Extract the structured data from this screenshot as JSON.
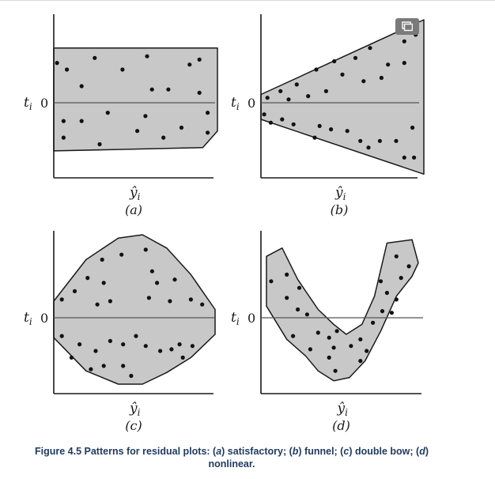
{
  "chart_data": [
    {
      "type": "scatter",
      "panel_label": "(a)",
      "pattern": "satisfactory",
      "ylabel": "t",
      "ylabel_subscript": "i",
      "y_zero_label": "0",
      "xlabel": "ŷ",
      "xlabel_subscript": "i",
      "xlim": [
        0,
        10
      ],
      "ylim": [
        -5,
        5
      ],
      "band": {
        "upper": [
          [
            0,
            3.3
          ],
          [
            10,
            3.3
          ]
        ],
        "lower": [
          [
            0,
            -2.9
          ],
          [
            9.1,
            -2.7
          ],
          [
            10,
            -1.7
          ]
        ]
      },
      "points": [
        [
          0.2,
          2.4
        ],
        [
          0.8,
          2.0
        ],
        [
          1.7,
          1.0
        ],
        [
          2.5,
          2.7
        ],
        [
          4.2,
          2.0
        ],
        [
          5.7,
          2.8
        ],
        [
          6.0,
          0.8
        ],
        [
          8.3,
          2.3
        ],
        [
          8.9,
          2.6
        ],
        [
          8.9,
          0.6
        ],
        [
          7.0,
          0.8
        ],
        [
          0.6,
          -1.1
        ],
        [
          1.7,
          -1.1
        ],
        [
          3.3,
          -0.6
        ],
        [
          5.1,
          -1.7
        ],
        [
          2.8,
          -2.5
        ],
        [
          0.6,
          -2.1
        ],
        [
          5.6,
          -0.8
        ],
        [
          6.7,
          -2.1
        ],
        [
          7.8,
          -1.5
        ],
        [
          9.4,
          -1.8
        ],
        [
          9.4,
          -0.6
        ]
      ]
    },
    {
      "type": "scatter",
      "panel_label": "(b)",
      "pattern": "funnel",
      "ylabel": "t",
      "ylabel_subscript": "i",
      "y_zero_label": "0",
      "xlabel": "ŷ",
      "xlabel_subscript": "i",
      "xlim": [
        0,
        10
      ],
      "ylim": [
        -5,
        5
      ],
      "band": {
        "upper": [
          [
            0,
            0.5
          ],
          [
            10,
            5.0
          ]
        ],
        "lower": [
          [
            0,
            -1.0
          ],
          [
            10,
            -4.3
          ]
        ]
      },
      "points": [
        [
          0.4,
          0.3
        ],
        [
          1.2,
          0.7
        ],
        [
          2.2,
          1.1
        ],
        [
          3.4,
          2.0
        ],
        [
          4.5,
          2.5
        ],
        [
          5.0,
          1.7
        ],
        [
          5.8,
          2.7
        ],
        [
          6.7,
          3.3
        ],
        [
          6.3,
          1.3
        ],
        [
          7.4,
          1.5
        ],
        [
          7.8,
          2.3
        ],
        [
          8.8,
          3.7
        ],
        [
          9.5,
          4.1
        ],
        [
          8.8,
          2.4
        ],
        [
          1.7,
          0.2
        ],
        [
          2.9,
          0.4
        ],
        [
          4.0,
          0.7
        ],
        [
          0.6,
          -1.2
        ],
        [
          1.3,
          -1.0
        ],
        [
          2.0,
          -1.3
        ],
        [
          3.6,
          -1.4
        ],
        [
          3.3,
          -2.1
        ],
        [
          4.3,
          -1.6
        ],
        [
          5.3,
          -1.7
        ],
        [
          6.1,
          -2.3
        ],
        [
          6.6,
          -2.7
        ],
        [
          7.3,
          -2.3
        ],
        [
          8.3,
          -2.3
        ],
        [
          9.3,
          -1.5
        ],
        [
          8.8,
          -3.3
        ],
        [
          9.4,
          -3.3
        ],
        [
          0.2,
          -0.7
        ]
      ]
    },
    {
      "type": "scatter",
      "panel_label": "(c)",
      "pattern": "double bow",
      "ylabel": "t",
      "ylabel_subscript": "i",
      "y_zero_label": "0",
      "xlabel": "ŷ",
      "xlabel_subscript": "i",
      "xlim": [
        0,
        10
      ],
      "ylim": [
        -5,
        5
      ],
      "band": {
        "upper": [
          [
            0,
            1.0
          ],
          [
            2,
            3.5
          ],
          [
            4,
            4.8
          ],
          [
            5.5,
            5.0
          ],
          [
            7,
            4.2
          ],
          [
            8.5,
            2.6
          ],
          [
            10,
            0.5
          ]
        ],
        "lower": [
          [
            0,
            -1.2
          ],
          [
            2,
            -3.2
          ],
          [
            4,
            -4.0
          ],
          [
            5.5,
            -4.0
          ],
          [
            7,
            -3.3
          ],
          [
            8.5,
            -2.4
          ],
          [
            10,
            -1.0
          ]
        ]
      },
      "points": [
        [
          0.5,
          1.1
        ],
        [
          1.3,
          1.6
        ],
        [
          2.1,
          2.4
        ],
        [
          3.0,
          3.5
        ],
        [
          4.2,
          3.8
        ],
        [
          5.7,
          4.1
        ],
        [
          6.4,
          2.1
        ],
        [
          7.5,
          2.3
        ],
        [
          8.5,
          1.1
        ],
        [
          5.9,
          1.2
        ],
        [
          3.5,
          1.0
        ],
        [
          6.1,
          2.8
        ],
        [
          3.1,
          2.1
        ],
        [
          2.7,
          0.8
        ],
        [
          7.2,
          1.0
        ],
        [
          9.2,
          0.8
        ],
        [
          0.5,
          -1.1
        ],
        [
          1.6,
          -1.6
        ],
        [
          1.1,
          -2.4
        ],
        [
          2.6,
          -2.0
        ],
        [
          3.5,
          -1.4
        ],
        [
          4.3,
          -1.6
        ],
        [
          5.1,
          -1.1
        ],
        [
          5.7,
          -1.7
        ],
        [
          3.1,
          -2.9
        ],
        [
          4.3,
          -2.9
        ],
        [
          7.3,
          -1.9
        ],
        [
          7.8,
          -1.6
        ],
        [
          8.6,
          -1.7
        ],
        [
          8.0,
          -2.4
        ],
        [
          6.6,
          -2.0
        ],
        [
          4.8,
          -3.5
        ],
        [
          2.3,
          -3.1
        ]
      ]
    },
    {
      "type": "scatter",
      "panel_label": "(d)",
      "pattern": "nonlinear",
      "ylabel": "t",
      "ylabel_subscript": "i",
      "y_zero_label": "0",
      "xlabel": "ŷ",
      "xlabel_subscript": "i",
      "xlim": [
        0,
        10
      ],
      "ylim": [
        -5,
        5
      ],
      "band": {
        "upper": [
          [
            0.2,
            3.7
          ],
          [
            1.2,
            4.2
          ],
          [
            2.2,
            2.3
          ],
          [
            3.5,
            0.5
          ],
          [
            4.5,
            -0.4
          ],
          [
            5.3,
            -1.0
          ],
          [
            6.3,
            -0.4
          ],
          [
            7.1,
            1.3
          ],
          [
            7.9,
            4.5
          ],
          [
            9.5,
            4.7
          ],
          [
            9.9,
            3.3
          ]
        ],
        "lower": [
          [
            0.2,
            0.7
          ],
          [
            1.5,
            -1.3
          ],
          [
            2.7,
            -2.3
          ],
          [
            3.5,
            -3.2
          ],
          [
            4.5,
            -3.8
          ],
          [
            5.5,
            -3.6
          ],
          [
            6.5,
            -2.6
          ],
          [
            7.5,
            -0.8
          ],
          [
            8.5,
            1.3
          ],
          [
            9.5,
            2.5
          ]
        ]
      },
      "points": [
        [
          0.5,
          2.2
        ],
        [
          1.5,
          2.6
        ],
        [
          2.3,
          1.8
        ],
        [
          1.5,
          1.2
        ],
        [
          2.2,
          0.5
        ],
        [
          2.8,
          0.2
        ],
        [
          1.9,
          -1.1
        ],
        [
          3.5,
          -0.9
        ],
        [
          3.0,
          -1.9
        ],
        [
          4.2,
          -1.2
        ],
        [
          4.7,
          -0.8
        ],
        [
          4.5,
          -1.8
        ],
        [
          4.2,
          -2.4
        ],
        [
          4.6,
          -3.2
        ],
        [
          5.6,
          -1.7
        ],
        [
          6.2,
          -1.3
        ],
        [
          6.2,
          -2.6
        ],
        [
          6.6,
          -2.0
        ],
        [
          7.0,
          -0.3
        ],
        [
          7.6,
          0.4
        ],
        [
          7.5,
          2.2
        ],
        [
          8.2,
          0.3
        ],
        [
          7.9,
          1.5
        ],
        [
          8.5,
          1.1
        ],
        [
          8.8,
          2.4
        ],
        [
          8.5,
          3.7
        ],
        [
          9.3,
          3.1
        ]
      ]
    }
  ],
  "caption": {
    "figure_label": "Figure 4.5 Patterns for residual plots: (",
    "a_letter": "a",
    "a_text": ") satisfactory; (",
    "b_letter": "b",
    "b_text": ") funnel; (",
    "c_letter": "c",
    "c_text": ") double bow; (",
    "d_letter": "d",
    "d_text": ") nonlinear."
  },
  "gallery_button": {
    "icon": "gallery-icon"
  }
}
